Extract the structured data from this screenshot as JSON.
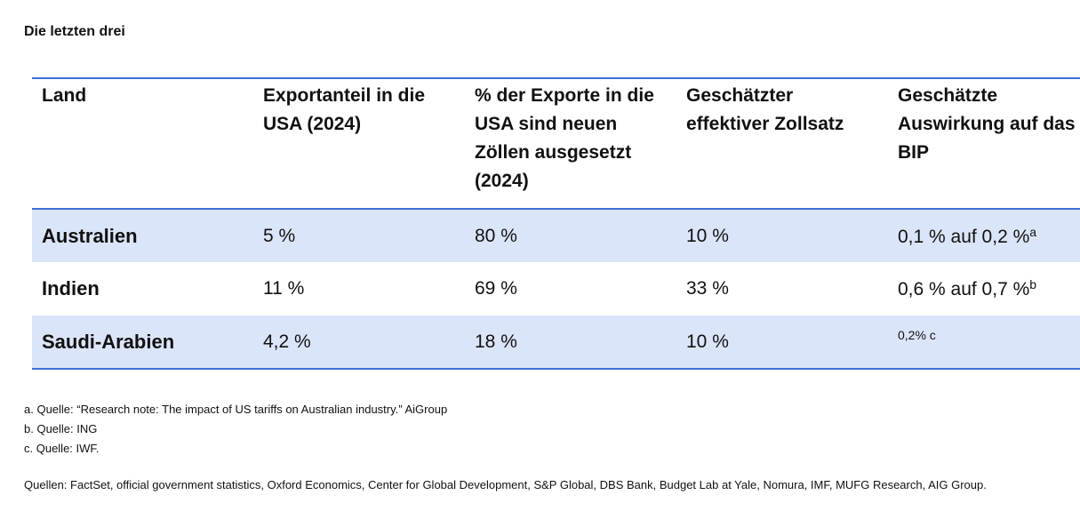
{
  "title": "Die letzten drei",
  "table": {
    "header": [
      "Land",
      "Exportanteil in die USA (2024)",
      "% der Exporte in die USA sind neuen Zöllen ausgesetzt (2024)",
      "Geschätzter effektiver Zollsatz",
      "Geschätzte Auswirkung auf das BIP"
    ],
    "rows": [
      [
        "Australien",
        "5 %",
        "80 %",
        "10 %",
        {
          "text": "0,1 % auf 0,2 %",
          "note": "a"
        }
      ],
      [
        "Indien",
        "11 %",
        "69 %",
        "33 %",
        {
          "text": "0,6 % auf 0,7 %",
          "note": "b"
        }
      ],
      [
        "Saudi-Arabien",
        "4,2 %",
        "18 %",
        "10 %",
        {
          "text": "0,2% c"
        }
      ]
    ]
  },
  "footnotes": [
    "a. Quelle: “Research note: The impact of US tariffs on Australian industry.” AiGroup",
    "b. Quelle: ING",
    "c. Quelle: IWF."
  ],
  "sources": "Quellen: FactSet, official government statistics, Oxford Economics, Center for Global Development, S&P Global, DBS Bank, Budget Lab at Yale, Nomura, IMF, MUFG Research, AIG Group."
}
